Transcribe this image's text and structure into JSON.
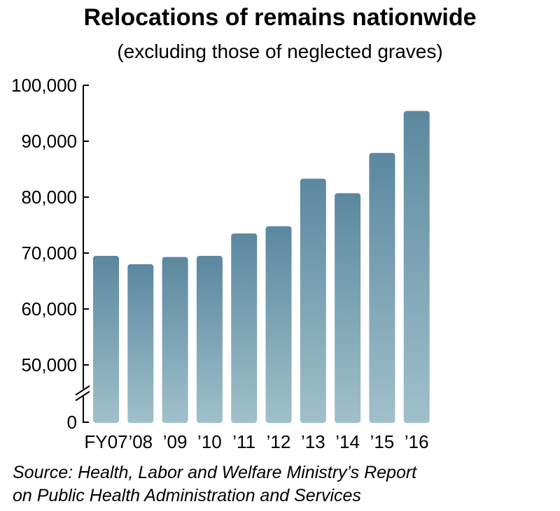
{
  "chart_data": {
    "type": "bar",
    "title": "Relocations of remains nationwide",
    "subtitle": "(excluding those of neglected graves)",
    "categories": [
      "FY07",
      "’08",
      "’09",
      "’10",
      "’11",
      "’12",
      "’13",
      "’14",
      "’15",
      "’16"
    ],
    "values": [
      69500,
      68000,
      69300,
      69500,
      73500,
      74800,
      83300,
      80700,
      87900,
      95400
    ],
    "xlabel": "",
    "ylabel": "",
    "ylim": [
      0,
      100000
    ],
    "axis_break": [
      0,
      50000
    ],
    "y_ticks": [
      {
        "value": 100000,
        "label": "100,000"
      },
      {
        "value": 90000,
        "label": "90,000"
      },
      {
        "value": 80000,
        "label": "80,000"
      },
      {
        "value": 70000,
        "label": "70,000"
      },
      {
        "value": 60000,
        "label": "60,000"
      },
      {
        "value": 50000,
        "label": "50,000"
      },
      {
        "value": 0,
        "label": "0"
      }
    ],
    "grid": false,
    "bar_color_top": "#5b889f",
    "bar_color_bottom": "#a0c0cb"
  },
  "source_lines": [
    "Source: Health, Labor and Welfare Ministry’s Report",
    "on Public Health Administration and Services"
  ]
}
